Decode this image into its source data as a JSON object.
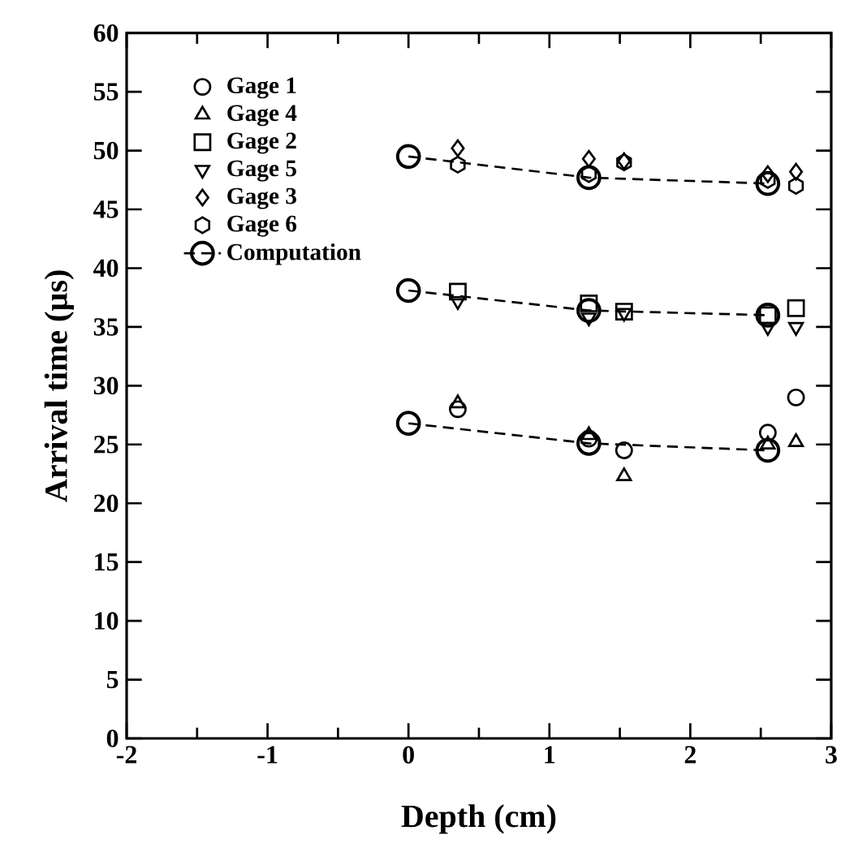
{
  "chart_data": {
    "type": "scatter",
    "xlabel": "Depth (cm)",
    "ylabel": "Arrival time (µs)",
    "xlim": [
      -2,
      3
    ],
    "ylim": [
      0,
      60
    ],
    "xticks": [
      -2,
      -1,
      0,
      1,
      2,
      3
    ],
    "yticks": [
      0,
      5,
      10,
      15,
      20,
      25,
      30,
      35,
      40,
      45,
      50,
      55,
      60
    ],
    "legend": "top left",
    "series": [
      {
        "name": "Gage 1",
        "type": "scatter",
        "marker": "circle",
        "color": "#000000",
        "x": [
          0.35,
          1.28,
          1.53,
          2.55,
          2.75
        ],
        "values": [
          28,
          25.5,
          24.5,
          26,
          29
        ]
      },
      {
        "name": "Gage 4",
        "type": "scatter",
        "marker": "triangle",
        "color": "#000000",
        "x": [
          0.35,
          1.28,
          1.53,
          2.55,
          2.75
        ],
        "values": [
          28.5,
          25.8,
          22.3,
          25,
          25.2
        ]
      },
      {
        "name": "Gage 2",
        "type": "scatter",
        "marker": "square",
        "color": "#000000",
        "x": [
          0.35,
          1.28,
          1.53,
          2.55,
          2.75
        ],
        "values": [
          38,
          37,
          36.3,
          36,
          36.6
        ]
      },
      {
        "name": "Gage 5",
        "type": "scatter",
        "marker": "triangle-down",
        "color": "#000000",
        "x": [
          0.35,
          1.28,
          1.53,
          2.55,
          2.75
        ],
        "values": [
          37.2,
          35.8,
          36.2,
          35,
          35
        ]
      },
      {
        "name": "Gage 3",
        "type": "scatter",
        "marker": "diamond",
        "color": "#000000",
        "x": [
          0.35,
          1.28,
          1.53,
          2.55,
          2.75
        ],
        "values": [
          50.2,
          49.3,
          49.1,
          48,
          48.2
        ]
      },
      {
        "name": "Gage 6",
        "color": "#000000",
        "x": [
          0.35,
          1.28,
          1.53,
          2.55,
          2.75
        ],
        "values": [
          48.8,
          48,
          49,
          47.5,
          47
        ]
      },
      {
        "name": "Computation",
        "type": "line",
        "marker": "circle",
        "line_style": "dashed",
        "color": "#000000",
        "x": [
          0,
          1.28,
          2.55
        ],
        "values": [
          49.5,
          47.7,
          47.2
        ]
      },
      {
        "type": "line",
        "marker": "circle",
        "line_style": "dashed",
        "color": "#000000",
        "x": [
          0,
          1.28,
          2.55
        ],
        "values": [
          38.1,
          36.4,
          36
        ]
      },
      {
        "type": "line",
        "marker": "circle",
        "line_style": "dashed",
        "color": "#000000",
        "x": [
          0,
          1.28,
          2.55
        ],
        "values": [
          26.8,
          25.1,
          24.5
        ]
      }
    ]
  }
}
